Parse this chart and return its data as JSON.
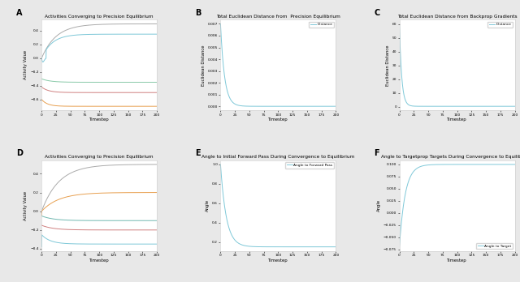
{
  "fig_width": 6.4,
  "fig_height": 3.48,
  "dpi": 100,
  "background_color": "#e8e8e8",
  "panel_bg": "#ffffff",
  "line_color_blue": "#7ec8d8",
  "line_color_gray": "#aaaaaa",
  "line_color_green": "#88c9a8",
  "line_color_red": "#d08080",
  "line_color_orange": "#e8a050",
  "line_color_dark_gray": "#888888",
  "timesteps": 200,
  "subplot_titles": [
    "Activities Converging to Precision Equilibrium",
    "Total Euclidean Distance from  Precision Equilibrium",
    "Total Euclidean Distance from Backprop Gradients",
    "Activities Converging to Precision Equilibrium",
    "Angle to Initial Forward Pass During Convergence to Equilibrium",
    "Angle to Targetprop Targets During Convergence to Equilibrium"
  ],
  "panel_labels": [
    "A",
    "B",
    "C",
    "D",
    "E",
    "F"
  ],
  "ylabel_A": "Activity Value",
  "ylabel_B": "Euclidean Distance",
  "ylabel_C": "Euclidean Distance",
  "ylabel_D": "Activity Value",
  "ylabel_E": "Angle",
  "ylabel_F": "Angle",
  "xlabel": "Timestep",
  "legend_B": "Distance",
  "legend_C": "Distance",
  "legend_E": "Angle to Forward Pass",
  "legend_F": "Angle to Target"
}
